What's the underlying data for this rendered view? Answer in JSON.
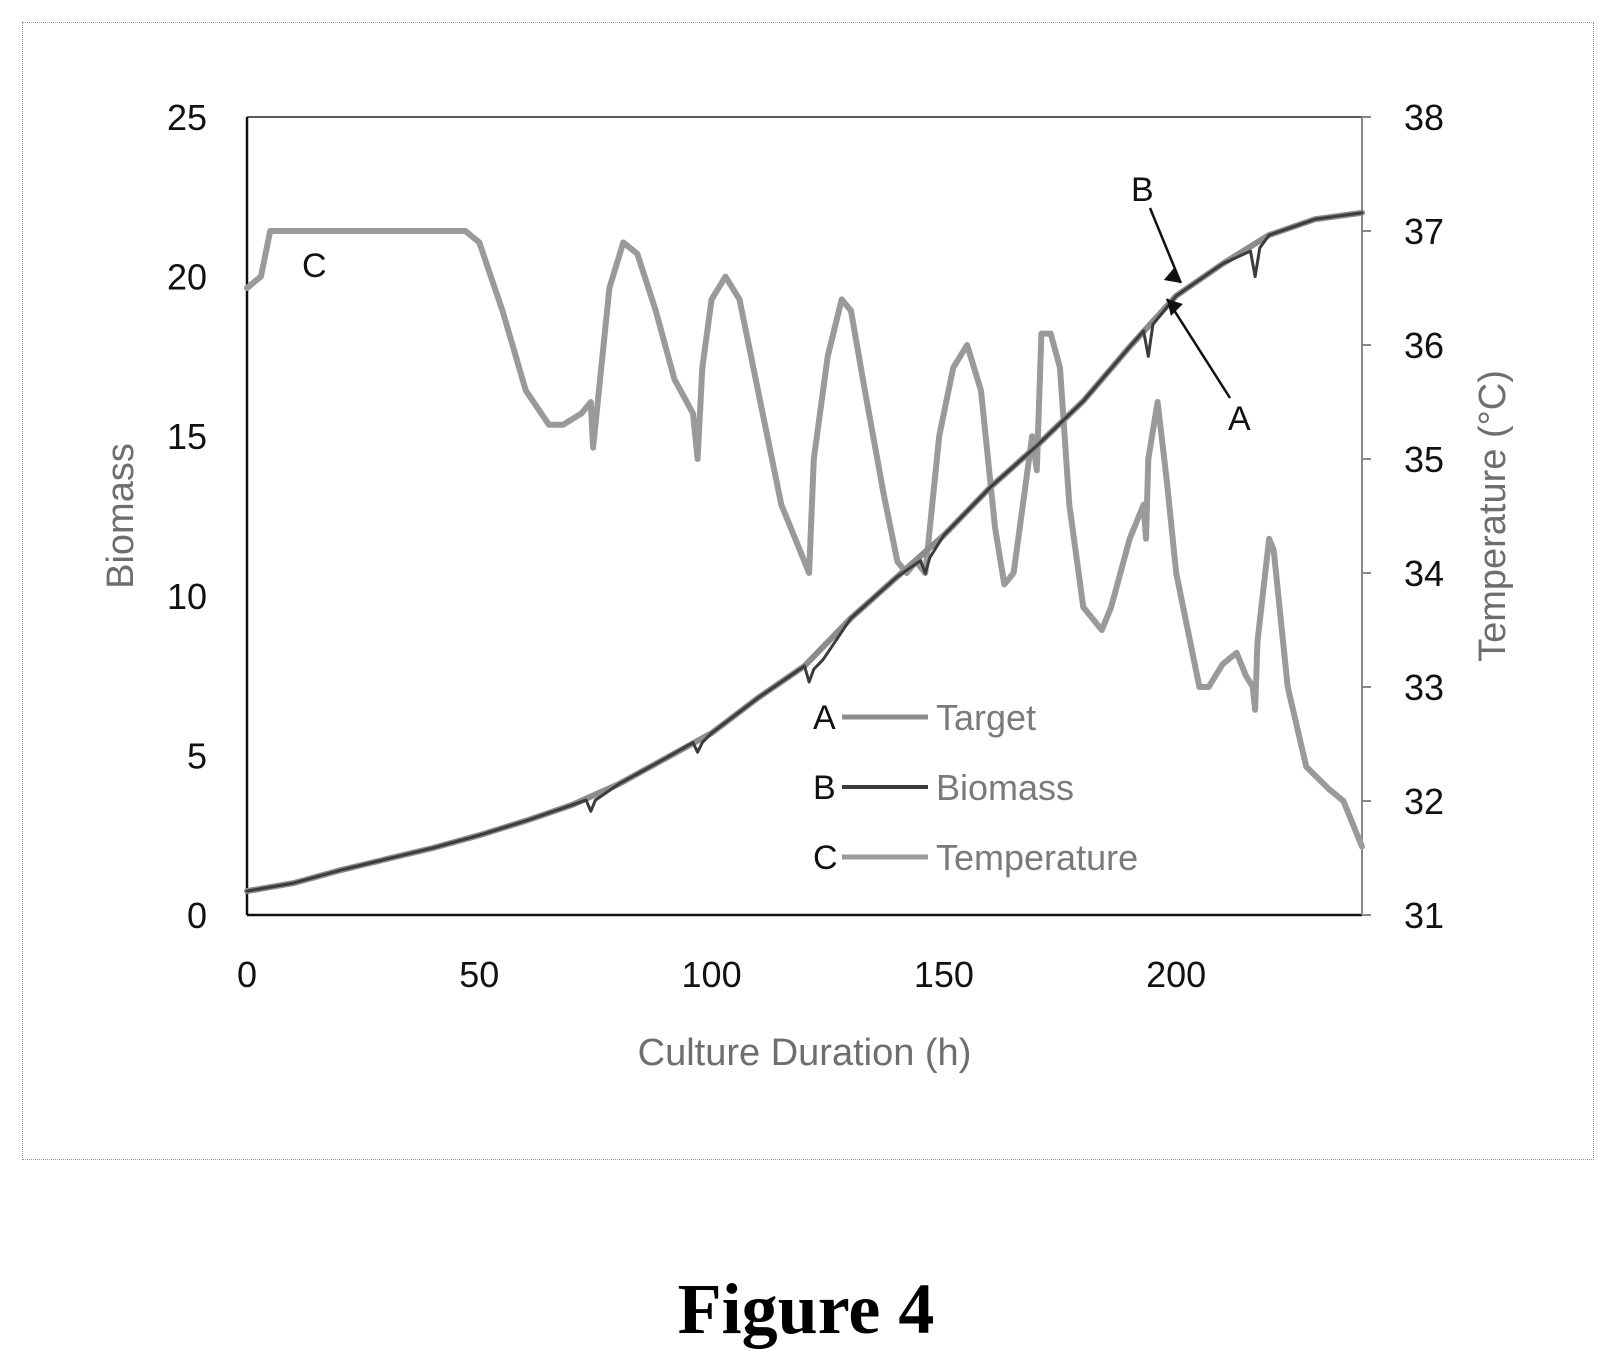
{
  "figure": {
    "caption": "Figure 4"
  },
  "chart_data": {
    "type": "line",
    "xlabel": "Culture Duration (h)",
    "ylabel": "Biomass",
    "y2label": "Temperature (°C)",
    "xlim": [
      0,
      240
    ],
    "ylim": [
      0,
      25
    ],
    "y2lim": [
      31,
      38
    ],
    "xticks": [
      "0",
      "50",
      "100",
      "150",
      "200"
    ],
    "yticks": [
      "0",
      "5",
      "10",
      "15",
      "20",
      "25"
    ],
    "y2ticks": [
      "31",
      "32",
      "33",
      "34",
      "35",
      "36",
      "37",
      "38"
    ],
    "grid": false,
    "legend_position": "bottom-center",
    "legend": [
      {
        "letter": "A",
        "label": "Target"
      },
      {
        "letter": "B",
        "label": "Biomass"
      },
      {
        "letter": "C",
        "label": "Temperature"
      }
    ],
    "annotations": [
      "A",
      "B",
      "C"
    ],
    "series": [
      {
        "name": "Target",
        "axis": "left",
        "color": "#8c8c8c",
        "x": [
          0,
          10,
          20,
          30,
          40,
          50,
          60,
          70,
          80,
          90,
          100,
          110,
          120,
          130,
          140,
          150,
          160,
          170,
          180,
          190,
          200,
          210,
          220,
          230,
          240
        ],
        "y": [
          0.75,
          1.0,
          1.4,
          1.75,
          2.1,
          2.5,
          2.95,
          3.45,
          4.1,
          4.9,
          5.7,
          6.8,
          7.8,
          9.3,
          10.6,
          11.9,
          13.4,
          14.7,
          16.1,
          17.8,
          19.4,
          20.4,
          21.3,
          21.8,
          22.0
        ]
      },
      {
        "name": "Biomass",
        "axis": "left",
        "color": "#3c3c3c",
        "x": [
          0,
          10,
          20,
          30,
          40,
          50,
          60,
          70,
          73,
          74,
          75,
          80,
          90,
          96,
          97,
          98,
          100,
          110,
          120,
          121,
          122,
          124,
          130,
          140,
          145,
          146,
          147,
          150,
          160,
          170,
          180,
          190,
          193,
          194,
          195,
          200,
          210,
          216,
          217,
          218,
          220,
          230,
          240
        ],
        "y": [
          0.75,
          1.0,
          1.4,
          1.75,
          2.1,
          2.5,
          2.95,
          3.45,
          3.6,
          3.25,
          3.6,
          4.1,
          4.9,
          5.4,
          5.1,
          5.4,
          5.7,
          6.8,
          7.8,
          7.3,
          7.7,
          8.0,
          9.3,
          10.6,
          11.1,
          10.7,
          11.2,
          11.9,
          13.4,
          14.7,
          16.1,
          17.8,
          18.3,
          17.5,
          18.5,
          19.4,
          20.4,
          20.8,
          20.0,
          20.9,
          21.3,
          21.8,
          22.0
        ]
      },
      {
        "name": "Temperature",
        "axis": "right",
        "color": "#9a9a9a",
        "x": [
          0,
          3,
          5,
          10,
          20,
          30,
          40,
          47,
          50,
          55,
          60,
          65,
          68,
          72,
          74,
          74.5,
          78,
          81,
          84,
          88,
          92,
          96,
          97,
          98,
          100,
          103,
          106,
          110,
          115,
          118,
          121,
          122,
          125,
          128,
          130,
          133,
          137,
          140,
          142,
          144,
          146,
          147,
          149,
          152,
          155,
          158,
          161,
          163,
          165,
          167,
          169,
          170,
          170.5,
          171,
          173,
          175,
          177,
          180,
          184,
          186,
          190,
          193,
          193.5,
          194,
          196,
          198,
          200,
          203,
          205,
          207,
          210,
          213,
          215,
          216.5,
          217,
          217.5,
          220,
          221,
          224,
          228,
          233,
          236,
          240
        ],
        "y": [
          36.5,
          36.6,
          37.0,
          37.0,
          37.0,
          37.0,
          37.0,
          37.0,
          36.9,
          36.3,
          35.6,
          35.3,
          35.3,
          35.4,
          35.5,
          35.1,
          36.5,
          36.9,
          36.8,
          36.3,
          35.7,
          35.4,
          35.0,
          35.8,
          36.4,
          36.6,
          36.4,
          35.6,
          34.6,
          34.3,
          34.0,
          35.0,
          35.9,
          36.4,
          36.3,
          35.6,
          34.7,
          34.1,
          34.0,
          34.1,
          34.0,
          34.4,
          35.2,
          35.8,
          36.0,
          35.6,
          34.4,
          33.9,
          34.0,
          34.6,
          35.2,
          34.9,
          35.5,
          36.1,
          36.1,
          35.8,
          34.6,
          33.7,
          33.5,
          33.7,
          34.3,
          34.6,
          34.3,
          35.0,
          35.5,
          34.8,
          34.0,
          33.4,
          33.0,
          33.0,
          33.2,
          33.3,
          33.1,
          33.0,
          32.8,
          33.4,
          34.3,
          34.2,
          33.0,
          32.3,
          32.1,
          32.0,
          31.6
        ]
      }
    ]
  }
}
